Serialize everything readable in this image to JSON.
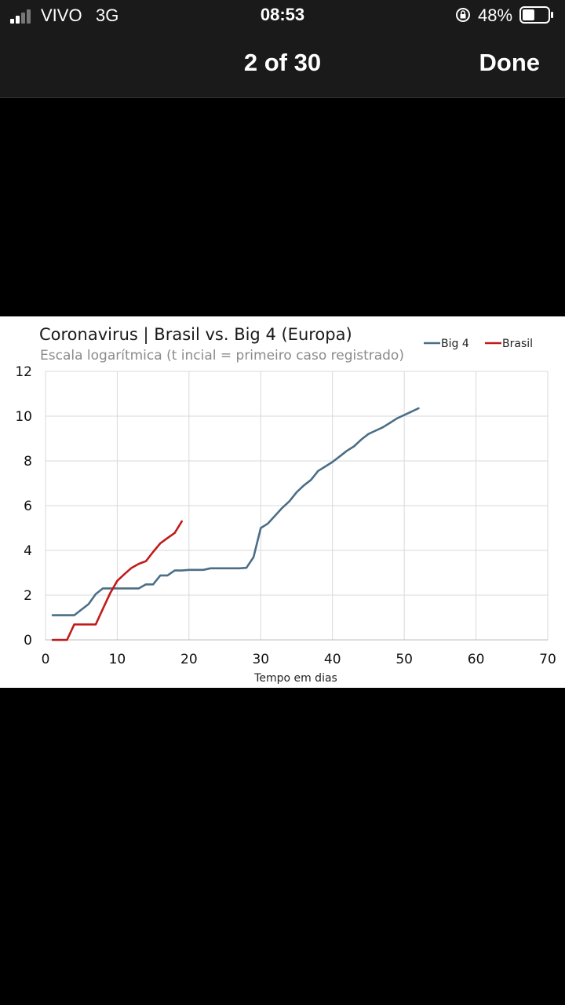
{
  "status_bar": {
    "carrier": "VIVO",
    "network": "3G",
    "time": "08:53",
    "battery_percent": "48%",
    "signal_bars": 2,
    "battery_level": 0.48
  },
  "viewer": {
    "page_counter": "2 of 30",
    "done_label": "Done"
  },
  "chart_data": {
    "type": "line",
    "title": "Coronavirus | Brasil vs. Big 4 (Europa)",
    "subtitle": "Escala logarítmica (t incial = primeiro caso registrado)",
    "xlabel": "Tempo em dias",
    "ylabel": "",
    "xlim": [
      0,
      70
    ],
    "ylim": [
      0,
      12
    ],
    "x_ticks": [
      "0",
      "10",
      "20",
      "30",
      "40",
      "50",
      "60",
      "70"
    ],
    "y_ticks": [
      "0",
      "2",
      "4",
      "6",
      "8",
      "10",
      "12"
    ],
    "grid": true,
    "legend_position": "top-right",
    "series": [
      {
        "name": "Big 4",
        "color": "#4b6e87",
        "x": [
          1,
          2,
          3,
          4,
          5,
          6,
          7,
          8,
          9,
          10,
          11,
          12,
          13,
          14,
          15,
          16,
          17,
          18,
          19,
          20,
          21,
          22,
          23,
          24,
          25,
          26,
          27,
          28,
          29,
          30,
          31,
          32,
          33,
          34,
          35,
          36,
          37,
          38,
          39,
          40,
          41,
          42,
          43,
          44,
          45,
          46,
          47,
          48,
          49,
          50,
          51,
          52
        ],
        "y": [
          1.1,
          1.1,
          1.1,
          1.1,
          1.35,
          1.6,
          2.05,
          2.3,
          2.3,
          2.3,
          2.3,
          2.3,
          2.3,
          2.48,
          2.48,
          2.88,
          2.88,
          3.1,
          3.1,
          3.13,
          3.13,
          3.13,
          3.2,
          3.2,
          3.2,
          3.2,
          3.2,
          3.22,
          3.7,
          5.0,
          5.2,
          5.55,
          5.9,
          6.2,
          6.6,
          6.9,
          7.15,
          7.55,
          7.75,
          7.95,
          8.2,
          8.45,
          8.65,
          8.95,
          9.2,
          9.35,
          9.5,
          9.7,
          9.9,
          10.05,
          10.2,
          10.35
        ]
      },
      {
        "name": "Brasil",
        "color": "#c21a1a",
        "x": [
          1,
          2,
          3,
          4,
          5,
          6,
          7,
          8,
          9,
          10,
          11,
          12,
          13,
          14,
          15,
          16,
          17,
          18,
          19
        ],
        "y": [
          0,
          0,
          0,
          0.69,
          0.69,
          0.69,
          0.69,
          1.39,
          2.08,
          2.64,
          2.94,
          3.22,
          3.4,
          3.52,
          3.93,
          4.32,
          4.55,
          4.78,
          5.3
        ]
      }
    ]
  }
}
